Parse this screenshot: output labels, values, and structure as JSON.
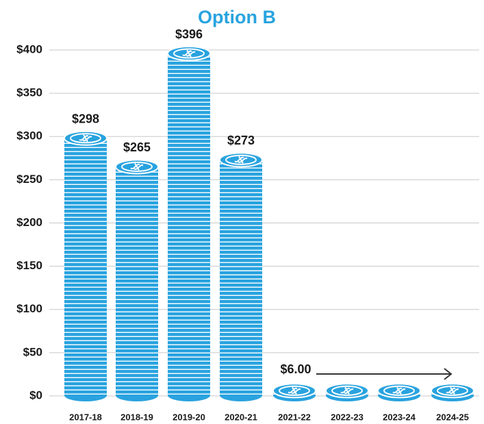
{
  "chart_data": {
    "type": "bar",
    "title": "Option B",
    "categories": [
      "2017-18",
      "2018-19",
      "2019-20",
      "2020-21",
      "2021-22",
      "2022-23",
      "2023-24",
      "2024-25"
    ],
    "values": [
      298,
      265,
      396,
      273,
      6,
      6,
      6,
      6
    ],
    "value_labels": [
      "$298",
      "$265",
      "$396",
      "$273",
      "$6.00",
      null,
      null,
      null
    ],
    "color": "#29a3df",
    "ylim": [
      0,
      400
    ],
    "yticks": [
      {
        "value": 0,
        "label": "$0"
      },
      {
        "value": 50,
        "label": "$50"
      },
      {
        "value": 100,
        "label": "$100"
      },
      {
        "value": 150,
        "label": "$150"
      },
      {
        "value": 200,
        "label": "$200"
      },
      {
        "value": 250,
        "label": "$250"
      },
      {
        "value": 300,
        "label": "$300"
      },
      {
        "value": 350,
        "label": "$350"
      },
      {
        "value": 400,
        "label": "$400"
      }
    ],
    "grid": true
  }
}
